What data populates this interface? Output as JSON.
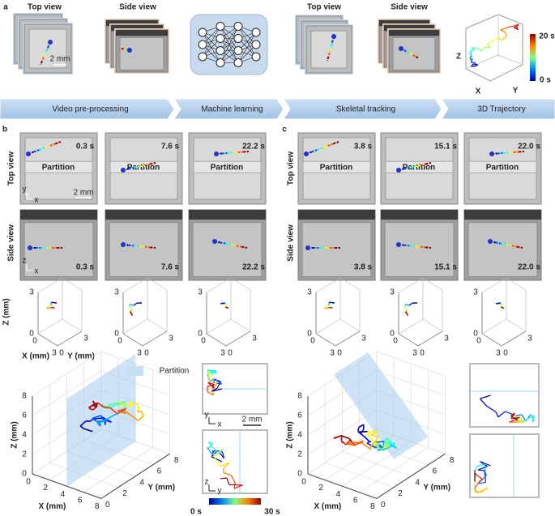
{
  "labels": {
    "a": "a",
    "b": "b",
    "c": "c"
  },
  "views": {
    "top": "Top view",
    "side": "Side view"
  },
  "scale_bar": "2 mm",
  "partition": "Partition",
  "pipeline": [
    "Video pre-processing",
    "Machine learning",
    "Skeletal tracking",
    "3D Trajectory"
  ],
  "panel_a_axes": {
    "x": "X",
    "y": "Y",
    "z": "Z"
  },
  "panel_a_colorbar": {
    "max": "20 s",
    "min": "0 s"
  },
  "panel_b_times": [
    "0.3 s",
    "7.6 s",
    "22.2 s"
  ],
  "panel_c_times": [
    "3.8 s",
    "15.1 s",
    "22.0 s"
  ],
  "orientation": {
    "x": "x",
    "y": "y",
    "z": "z"
  },
  "small_plot": {
    "x_label": "X (mm)",
    "y_label": "Y (mm)",
    "z_label": "Z (mm)",
    "ticks": [
      0,
      3
    ]
  },
  "large_plot": {
    "x_label": "X (mm)",
    "y_label": "Y (mm)",
    "z_label": "Z (mm)",
    "ticks": [
      0,
      2,
      4,
      6,
      8
    ]
  },
  "large_colorbar": {
    "min": "0 s",
    "max": "30 s"
  }
}
